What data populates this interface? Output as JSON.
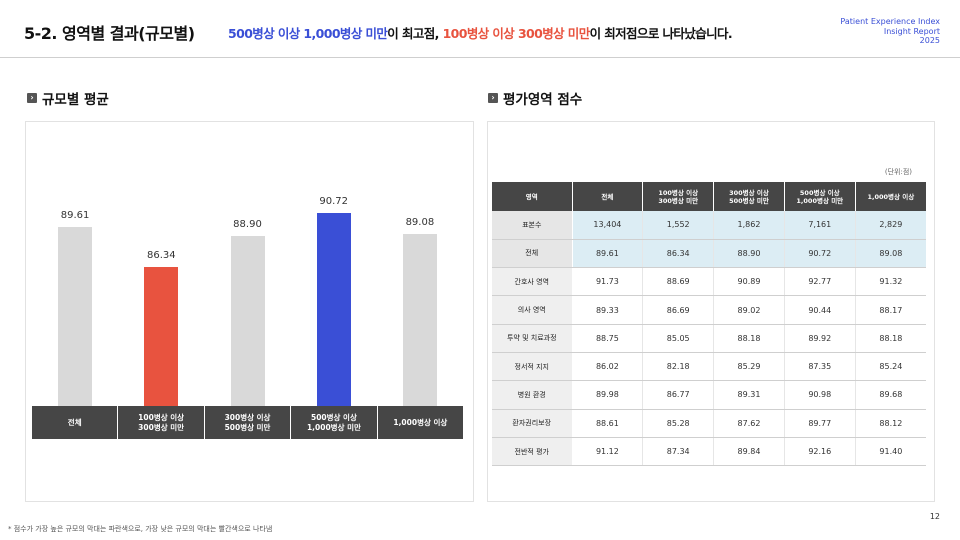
{
  "header": {
    "title": "5-2. 영역별 결과(규모별)",
    "subtitle_parts": [
      {
        "text": "500병상 이상 1,000병상 미만",
        "tone": "blue"
      },
      {
        "text": "이 최고점, ",
        "tone": "dark"
      },
      {
        "text": "100병상 이상 300병상 미만",
        "tone": "red"
      },
      {
        "text": "이 최저점으로 나타났습니다.",
        "tone": "dark"
      }
    ],
    "brand_lines": [
      "Patient Experience Index",
      "Insight Report",
      "2025"
    ]
  },
  "colors": {
    "blue": "#3a4fd6",
    "red": "#e8533f",
    "gray": "#d9d9d9",
    "dark": "#464646"
  },
  "left_section": {
    "title": "규모별 평균",
    "icon": "arrow-right-icon"
  },
  "right_section": {
    "title": "평가영역 점수",
    "icon": "arrow-right-icon"
  },
  "chart_data": {
    "type": "bar",
    "categories": [
      "전체",
      "100병상 이상\n300병상 미만",
      "300병상 이상\n500병상 미만",
      "500병상 이상\n1,000병상 미만",
      "1,000병상 이상"
    ],
    "values": [
      89.61,
      86.34,
      88.9,
      90.72,
      89.08
    ],
    "value_labels": [
      "89.61",
      "86.34",
      "88.90",
      "90.72",
      "89.08"
    ],
    "highlight": [
      "gray",
      "red",
      "gray",
      "blue",
      "gray"
    ]
  },
  "table": {
    "unit": "(단위:점)",
    "headers": [
      "영역",
      "전체",
      "100병상 이상\n300병상 미만",
      "300병상 이상\n500병상 미만",
      "500병상 이상\n1,000병상 미만",
      "1,000병상 이상"
    ],
    "rows": [
      {
        "label": "표본수",
        "cells": [
          "13,404",
          "1,552",
          "1,862",
          "7,161",
          "2,829"
        ],
        "highlight": true
      },
      {
        "label": "전체",
        "cells": [
          "89.61",
          "86.34",
          "88.90",
          "90.72",
          "89.08"
        ],
        "highlight": true
      },
      {
        "label": "간호사 영역",
        "cells": [
          "91.73",
          "88.69",
          "90.89",
          "92.77",
          "91.32"
        ],
        "highlight": false
      },
      {
        "label": "의사 영역",
        "cells": [
          "89.33",
          "86.69",
          "89.02",
          "90.44",
          "88.17"
        ],
        "highlight": false
      },
      {
        "label": "투약 및 치료과정",
        "cells": [
          "88.75",
          "85.05",
          "88.18",
          "89.92",
          "88.18"
        ],
        "highlight": false
      },
      {
        "label": "정서적 지지",
        "cells": [
          "86.02",
          "82.18",
          "85.29",
          "87.35",
          "85.24"
        ],
        "highlight": false
      },
      {
        "label": "병원 환경",
        "cells": [
          "89.98",
          "86.77",
          "89.31",
          "90.98",
          "89.68"
        ],
        "highlight": false
      },
      {
        "label": "환자권리보장",
        "cells": [
          "88.61",
          "85.28",
          "87.62",
          "89.77",
          "88.12"
        ],
        "highlight": false
      },
      {
        "label": "전반적 평가",
        "cells": [
          "91.12",
          "87.34",
          "89.84",
          "92.16",
          "91.40"
        ],
        "highlight": false
      }
    ]
  },
  "footnote": "* 점수가 가장 높은 규모의 막대는 파란색으로, 가장 낮은 규모의 막대는 빨간색으로 나타냄",
  "page_number": "12"
}
